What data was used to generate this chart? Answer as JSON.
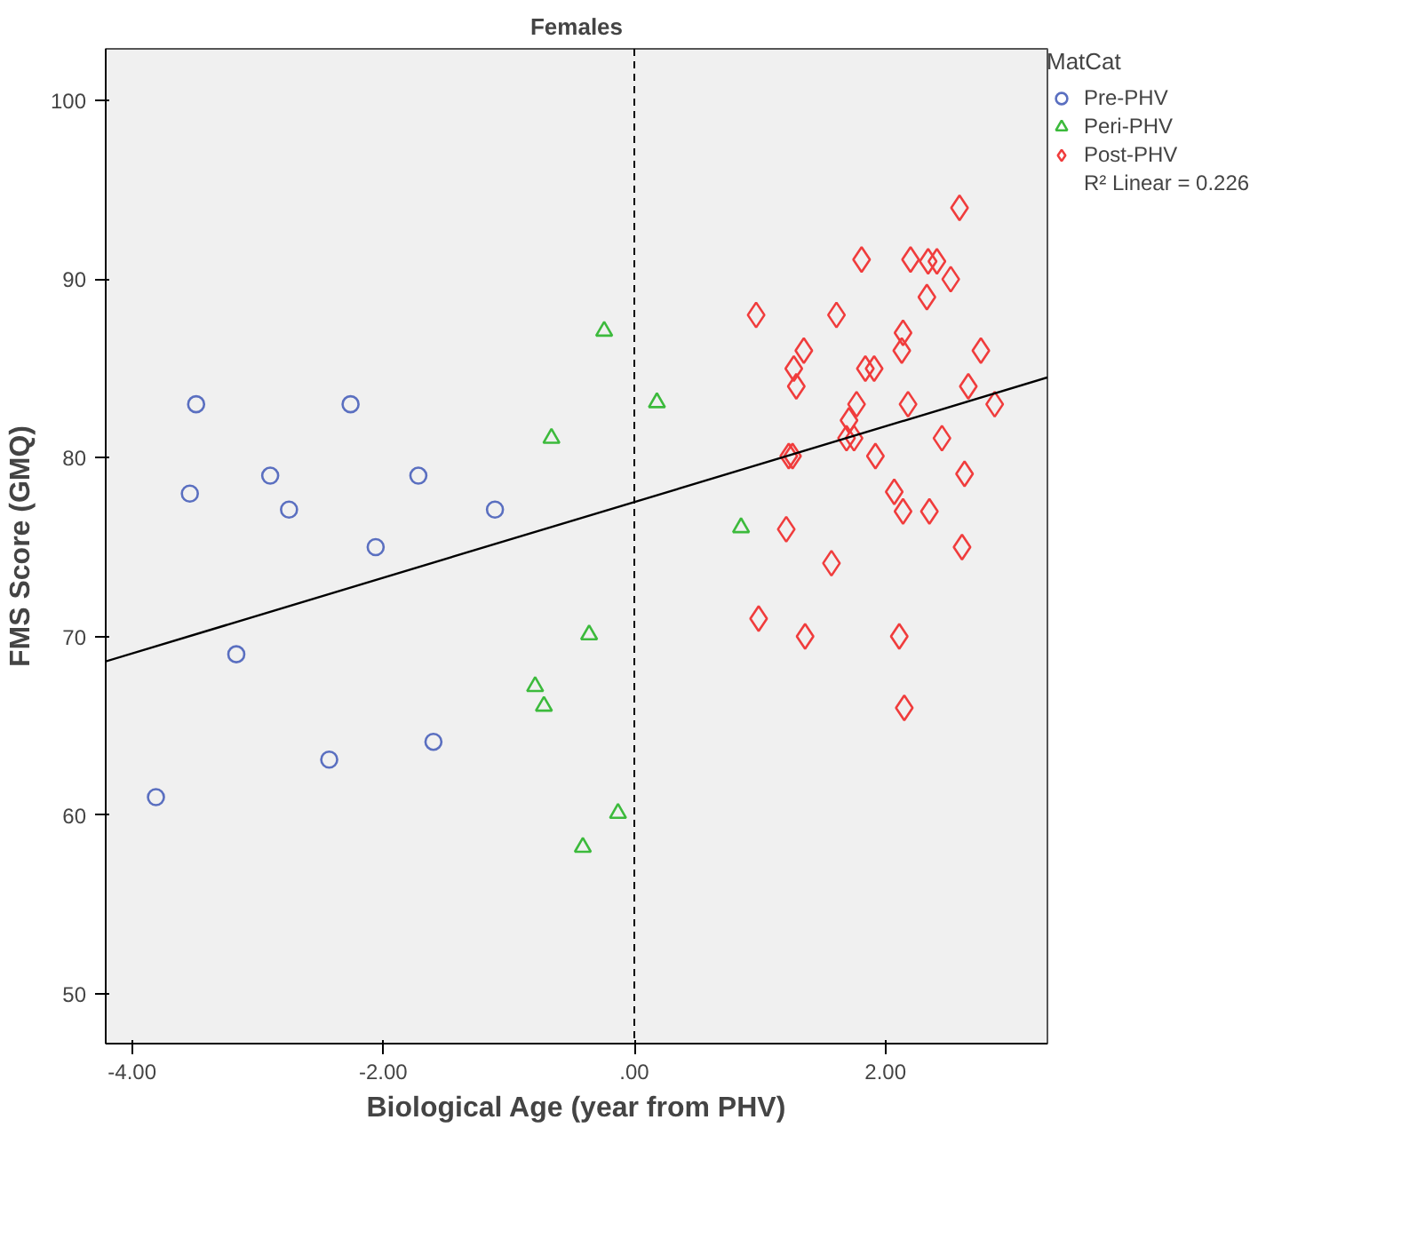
{
  "chart_data": {
    "type": "scatter",
    "title": "Females",
    "xlabel": "Biological Age (year from PHV)",
    "ylabel": "FMS Score (GMQ)",
    "legend_title": "MatCat",
    "legend": "top right",
    "grid": false,
    "xlim": [
      -4.21,
      3.29
    ],
    "ylim": [
      47.2,
      102.9
    ],
    "xticks": [
      {
        "value": -4,
        "label": "-4.00"
      },
      {
        "value": -2,
        "label": "-2.00"
      },
      {
        "value": 0,
        "label": ".00"
      },
      {
        "value": 2,
        "label": "2.00"
      }
    ],
    "yticks": [
      50,
      60,
      70,
      80,
      90,
      100
    ],
    "ref_lines": [
      {
        "axis": "x",
        "value": 0,
        "line_style": "dashed",
        "color": "#000000"
      }
    ],
    "annotations": [
      "R² Linear = 0.226"
    ],
    "series": [
      {
        "name": "Pre-PHV",
        "color": "#5a6fc0",
        "marker": "circle",
        "x": [
          -3.49,
          -2.26,
          -3.54,
          -2.9,
          -2.75,
          -1.72,
          -2.06,
          -1.11,
          -3.17,
          -2.43,
          -1.6,
          -3.81
        ],
        "values": [
          83,
          83,
          78,
          79,
          77.1,
          79,
          75,
          77.1,
          69,
          63.1,
          64.1,
          61
        ]
      },
      {
        "name": "Peri-PHV",
        "color": "#3cba3c",
        "marker": "triangle",
        "x": [
          -0.24,
          0.18,
          -0.66,
          -0.36,
          -0.79,
          -0.72,
          -0.13,
          -0.41,
          0.85
        ],
        "values": [
          87.1,
          83.1,
          81.1,
          70.1,
          67.2,
          66.1,
          60.1,
          58.2,
          76.1
        ]
      },
      {
        "name": "Post-PHV",
        "color": "#f03c3c",
        "marker": "diamond",
        "x": [
          2.59,
          1.81,
          2.2,
          2.34,
          2.41,
          2.52,
          2.33,
          0.97,
          1.61,
          2.14,
          1.35,
          2.13,
          2.76,
          1.27,
          1.84,
          1.91,
          1.29,
          2.66,
          1.77,
          2.18,
          2.87,
          1.71,
          1.69,
          1.75,
          2.45,
          1.23,
          1.26,
          1.92,
          2.63,
          2.07,
          2.14,
          2.35,
          1.21,
          2.61,
          1.57,
          0.99,
          1.36,
          2.11,
          2.15
        ],
        "values": [
          94,
          91.1,
          91.1,
          91,
          91,
          90,
          89,
          88,
          88,
          87,
          86,
          86,
          86,
          85,
          85,
          85,
          84,
          84,
          83,
          83,
          83,
          82.1,
          81.1,
          81.1,
          81.1,
          80.1,
          80.1,
          80.1,
          79.1,
          78.1,
          77,
          77,
          76,
          75,
          74.1,
          71,
          70,
          70,
          66
        ]
      },
      {
        "type": "line",
        "color": "#000000",
        "marker": "none",
        "x": [
          -4.21,
          3.29
        ],
        "values": [
          68.6,
          84.5
        ]
      }
    ]
  }
}
